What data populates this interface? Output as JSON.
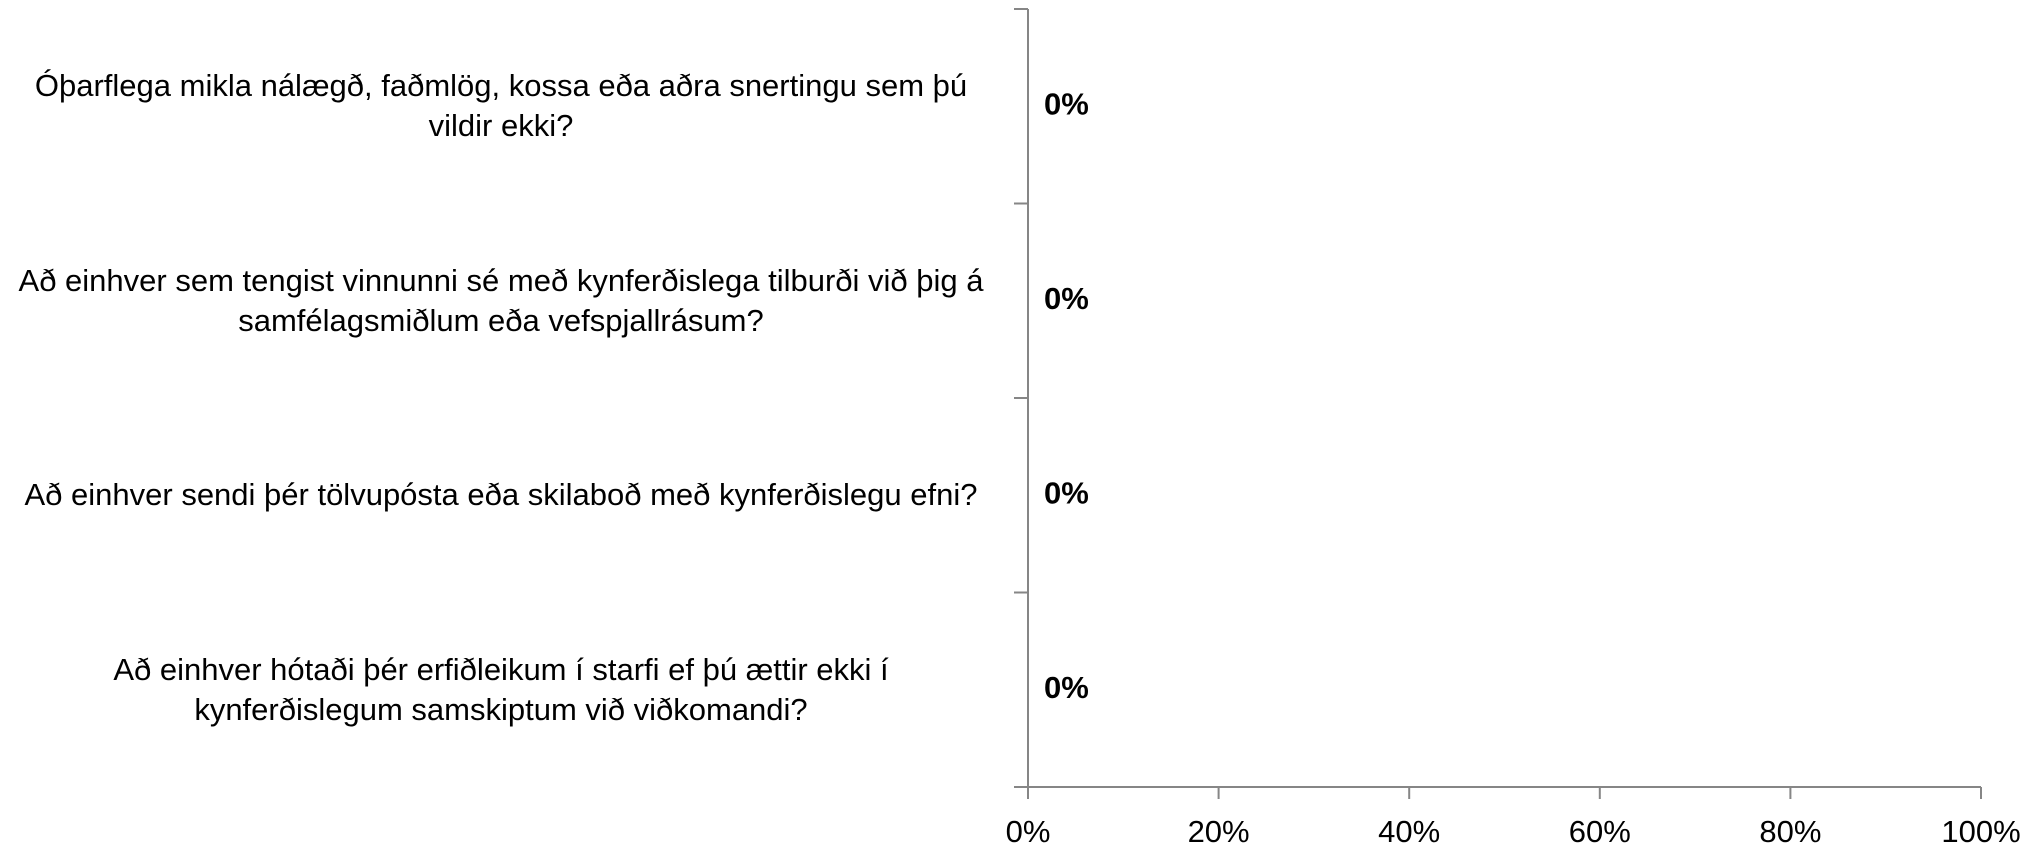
{
  "chart_data": {
    "type": "bar",
    "orientation": "horizontal",
    "categories": [
      "Óþarflega mikla nálægð, faðmlög, kossa eða aðra snertingu sem þú vildir ekki?",
      "Að einhver sem tengist vinnunni sé með kynferðislega tilburði við þig á samfélagsmiðlum eða vefspjallrásum?",
      "Að einhver sendi þér tölvupósta eða skilaboð með kynferðislegu efni?",
      "Að einhver hótaði þér erfiðleikum í starfi ef þú ættir ekki í kynferðislegum samskiptum við viðkomandi?"
    ],
    "values": [
      0,
      0,
      0,
      0
    ],
    "value_labels": [
      "0%",
      "0%",
      "0%",
      "0%"
    ],
    "color": "#4472c4",
    "xlim": [
      0,
      100
    ],
    "xticks": [
      {
        "value": 0,
        "label": "0%"
      },
      {
        "value": 20,
        "label": "20%"
      },
      {
        "value": 40,
        "label": "40%"
      },
      {
        "value": 60,
        "label": "60%"
      },
      {
        "value": 80,
        "label": "80%"
      },
      {
        "value": 100,
        "label": "100%"
      }
    ]
  }
}
